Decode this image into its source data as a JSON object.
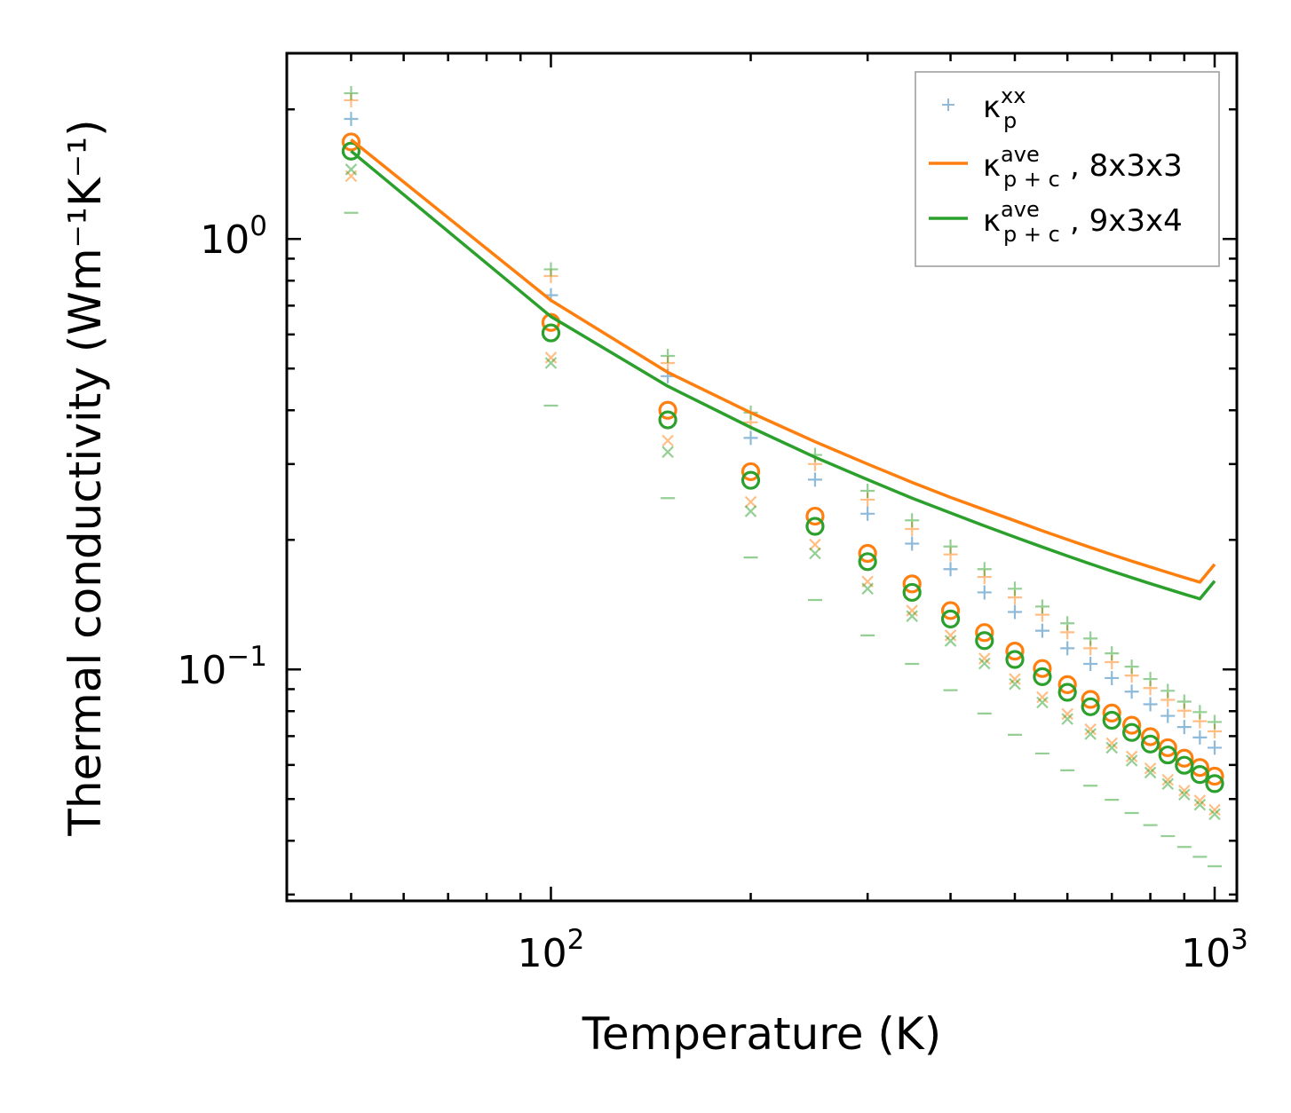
{
  "chart_data": {
    "type": "scatter",
    "xscale": "log",
    "yscale": "log",
    "xlabel": "Temperature (K)",
    "ylabel": "Thermal conductivity (Wm⁻¹K⁻¹)",
    "xlim": [
      40,
      1080
    ],
    "ylim": [
      0.029,
      2.7
    ],
    "x_ticks": [
      {
        "value": 100,
        "base": "10",
        "exp": "2"
      },
      {
        "value": 1000,
        "base": "10",
        "exp": "3"
      }
    ],
    "y_ticks": [
      {
        "value": 0.1,
        "base": "10",
        "exp": "−1"
      },
      {
        "value": 1,
        "base": "10",
        "exp": "0"
      }
    ],
    "temperatures": [
      50,
      100,
      150,
      200,
      250,
      300,
      350,
      400,
      450,
      500,
      550,
      600,
      650,
      700,
      750,
      800,
      850,
      900,
      950,
      1000
    ],
    "legend": {
      "position": "top-right",
      "entries": [
        {
          "base": "κ",
          "sub": "p",
          "sup": "xx",
          "suffix": "",
          "color": "#1f77b4",
          "marker": "plus"
        },
        {
          "base": "κ",
          "sub": "p + c",
          "sup": "ave",
          "suffix": ", 8x3x3",
          "color": "#ff7f0e",
          "marker": "line"
        },
        {
          "base": "κ",
          "sub": "p + c",
          "sup": "ave",
          "suffix": ", 9x3x4",
          "color": "#2ca02c",
          "marker": "line"
        }
      ]
    },
    "series": [
      {
        "name": "kp_xx_blue_plus",
        "color": "#1f77b4",
        "marker": "plus",
        "opacity": 0.5,
        "values": [
          1.9,
          0.74,
          0.48,
          0.345,
          0.276,
          0.23,
          0.196,
          0.171,
          0.151,
          0.136,
          0.123,
          0.112,
          0.103,
          0.0955,
          0.0888,
          0.083,
          0.078,
          0.0735,
          0.0695,
          0.0658
        ]
      },
      {
        "name": "orange_plus",
        "color": "#ff7f0e",
        "marker": "plus",
        "opacity": 0.5,
        "values": [
          2.1,
          0.82,
          0.515,
          0.375,
          0.3,
          0.248,
          0.212,
          0.185,
          0.164,
          0.147,
          0.134,
          0.122,
          0.112,
          0.104,
          0.0968,
          0.0905,
          0.085,
          0.0802,
          0.0758,
          0.0718
        ]
      },
      {
        "name": "green_plus",
        "color": "#2ca02c",
        "marker": "plus",
        "opacity": 0.5,
        "values": [
          2.18,
          0.85,
          0.535,
          0.395,
          0.315,
          0.26,
          0.222,
          0.193,
          0.171,
          0.154,
          0.14,
          0.128,
          0.118,
          0.109,
          0.1015,
          0.095,
          0.0892,
          0.0842,
          0.0796,
          0.0755
        ]
      },
      {
        "name": "orange_x",
        "color": "#ff7f0e",
        "marker": "x",
        "opacity": 0.5,
        "values": [
          1.4,
          0.53,
          0.34,
          0.245,
          0.195,
          0.16,
          0.137,
          0.12,
          0.106,
          0.095,
          0.0862,
          0.0788,
          0.0726,
          0.0674,
          0.0628,
          0.0589,
          0.0554,
          0.0523,
          0.0496,
          0.0472
        ]
      },
      {
        "name": "green_x",
        "color": "#2ca02c",
        "marker": "x",
        "opacity": 0.5,
        "values": [
          1.45,
          0.515,
          0.32,
          0.233,
          0.186,
          0.154,
          0.133,
          0.1165,
          0.1032,
          0.0925,
          0.0838,
          0.0767,
          0.0708,
          0.0658,
          0.0614,
          0.0576,
          0.0542,
          0.0512,
          0.0485,
          0.0461
        ]
      },
      {
        "name": "green_minus",
        "color": "#2ca02c",
        "marker": "minus",
        "opacity": 0.5,
        "values": [
          1.15,
          0.41,
          0.25,
          0.182,
          0.145,
          0.12,
          0.103,
          0.0895,
          0.079,
          0.0705,
          0.0638,
          0.0583,
          0.0537,
          0.0498,
          0.0464,
          0.0435,
          0.041,
          0.0387,
          0.0367,
          0.0349
        ]
      },
      {
        "name": "kpc_ave_8x3x3_circles",
        "color": "#ff7f0e",
        "marker": "circle",
        "opacity": 1,
        "values": [
          1.68,
          0.64,
          0.4,
          0.288,
          0.227,
          0.186,
          0.158,
          0.137,
          0.1218,
          0.1103,
          0.1005,
          0.0922,
          0.0852,
          0.0792,
          0.0742,
          0.0698,
          0.0658,
          0.0622,
          0.0592,
          0.0565
        ]
      },
      {
        "name": "kpc_ave_9x3x4_circles",
        "color": "#2ca02c",
        "marker": "circle",
        "opacity": 1,
        "values": [
          1.6,
          0.605,
          0.38,
          0.275,
          0.215,
          0.178,
          0.151,
          0.131,
          0.1167,
          0.1055,
          0.0962,
          0.0885,
          0.0819,
          0.0762,
          0.0714,
          0.0671,
          0.0633,
          0.0599,
          0.057,
          0.0543
        ]
      },
      {
        "name": "kpc_ave_8x3x3_line",
        "color": "#ff7f0e",
        "marker": "line",
        "opacity": 1,
        "values": [
          1.7,
          0.72,
          0.49,
          0.395,
          0.338,
          0.3,
          0.272,
          0.251,
          0.235,
          0.2215,
          0.21,
          0.2003,
          0.192,
          0.1848,
          0.1785,
          0.173,
          0.168,
          0.1635,
          0.1595,
          0.1755
        ]
      },
      {
        "name": "kpc_ave_9x3x4_line",
        "color": "#2ca02c",
        "marker": "line",
        "opacity": 1,
        "values": [
          1.6,
          0.66,
          0.455,
          0.365,
          0.311,
          0.276,
          0.25,
          0.231,
          0.2155,
          0.203,
          0.1925,
          0.1835,
          0.1758,
          0.1692,
          0.1634,
          0.1582,
          0.1537,
          0.1496,
          0.1459,
          0.1605
        ]
      }
    ]
  }
}
